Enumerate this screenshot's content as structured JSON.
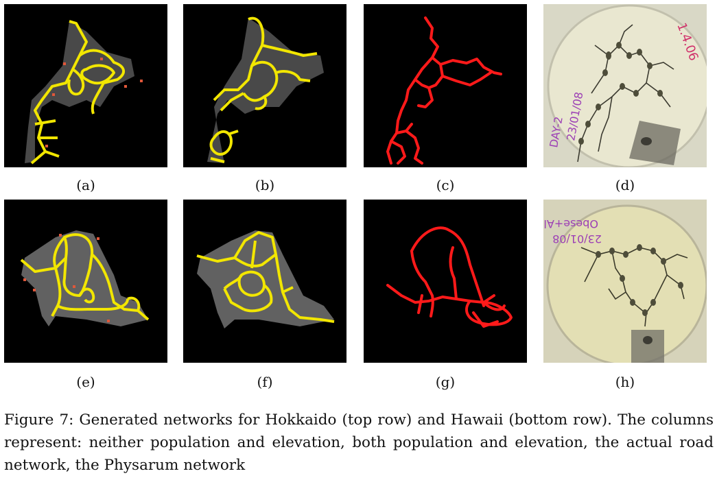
{
  "figure": {
    "caption": "Figure 7: Generated networks for Hokkaido (top row) and Hawaii (bottom row). The columns represent: neither population and elevation, both population and elevation, the actual road network, the Physarum network",
    "panels": [
      {
        "label": "(a)",
        "kind": "generated-network",
        "region": "Hokkaido"
      },
      {
        "label": "(b)",
        "kind": "generated-network",
        "region": "Hokkaido"
      },
      {
        "label": "(c)",
        "kind": "road-network",
        "region": "Hokkaido"
      },
      {
        "label": "(d)",
        "kind": "physarum-photo",
        "region": "Hokkaido",
        "dish_text": [
          "DAY-2",
          "23/01/08",
          "1.4.06"
        ]
      },
      {
        "label": "(e)",
        "kind": "generated-network",
        "region": "Hawaii"
      },
      {
        "label": "(f)",
        "kind": "generated-network",
        "region": "Hawaii"
      },
      {
        "label": "(g)",
        "kind": "road-network",
        "region": "Hawaii"
      },
      {
        "label": "(h)",
        "kind": "physarum-photo",
        "region": "Hawaii",
        "dish_text": [
          "Obese+Ala",
          "23/01/08"
        ]
      }
    ],
    "colors": {
      "network": "#f2e600",
      "road": "#ff1a1a",
      "city_marker": "#e0573a",
      "terrain": "#8a8a8a"
    }
  }
}
